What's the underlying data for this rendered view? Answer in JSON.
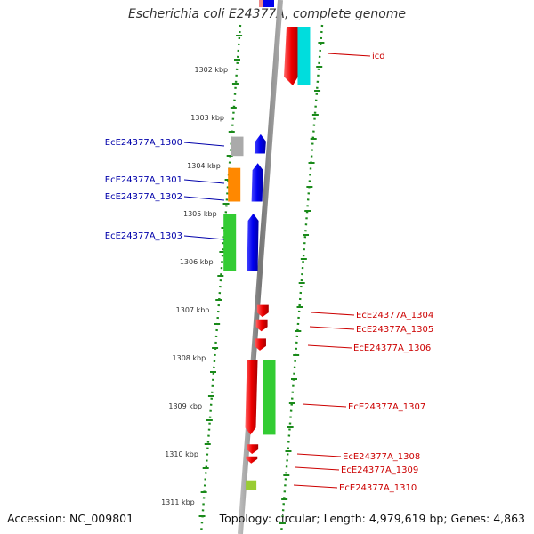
{
  "title": "Escherichia coli E24377A, complete genome",
  "footer": {
    "accession": "Accession: NC_009801",
    "stats": "Topology: circular; Length: 4,979,619 bp; Genes: 4,863"
  },
  "scale_labels": [
    {
      "kbp": 1302,
      "text": "1302 kbp"
    },
    {
      "kbp": 1303,
      "text": "1303 kbp"
    },
    {
      "kbp": 1304,
      "text": "1304 kbp"
    },
    {
      "kbp": 1305,
      "text": "1305 kbp"
    },
    {
      "kbp": 1306,
      "text": "1306 kbp"
    },
    {
      "kbp": 1307,
      "text": "1307 kbp"
    },
    {
      "kbp": 1308,
      "text": "1308 kbp"
    },
    {
      "kbp": 1309,
      "text": "1309 kbp"
    },
    {
      "kbp": 1310,
      "text": "1310 kbp"
    },
    {
      "kbp": 1311,
      "text": "1311 kbp"
    }
  ],
  "colors": {
    "forward_label": "#cc0000",
    "reverse_label": "#0000aa",
    "backbone": "#888888",
    "tick_marks": "#1a8a1a"
  },
  "genes_left": [
    {
      "name": "EcE24377A_1300",
      "start_kbp": 1303.4,
      "end_kbp": 1303.8,
      "color": "#aaaaaa"
    },
    {
      "name": "EcE24377A_1301",
      "start_kbp": 1304.05,
      "end_kbp": 1304.75,
      "color": "#ff8800"
    },
    {
      "name": "EcE24377A_1302",
      "start_kbp": 1304.05,
      "end_kbp": 1304.8,
      "color": "#0000ee"
    },
    {
      "name": "EcE24377A_1303",
      "start_kbp": 1305.0,
      "end_kbp": 1306.2,
      "color": "#33cc33"
    }
  ],
  "genes_right": [
    {
      "name": "icd",
      "start_kbp": 1301.05,
      "end_kbp": 1302.3,
      "color": "#00dddd"
    },
    {
      "name": "EcE24377A_1304",
      "start_kbp": 1306.9,
      "end_kbp": 1307.15,
      "color": "#ee0000"
    },
    {
      "name": "EcE24377A_1305",
      "start_kbp": 1307.2,
      "end_kbp": 1307.45,
      "color": "#ee0000"
    },
    {
      "name": "EcE24377A_1306",
      "start_kbp": 1307.6,
      "end_kbp": 1307.85,
      "color": "#ee0000"
    },
    {
      "name": "EcE24377A_1307",
      "start_kbp": 1308.05,
      "end_kbp": 1309.6,
      "color": "#33cc33"
    },
    {
      "name": "EcE24377A_1308",
      "start_kbp": 1309.8,
      "end_kbp": 1310.0,
      "color": "#ee0000"
    },
    {
      "name": "EcE24377A_1309",
      "start_kbp": 1310.05,
      "end_kbp": 1310.2,
      "color": "#ee0000"
    },
    {
      "name": "EcE24377A_1310",
      "start_kbp": 1310.55,
      "end_kbp": 1310.75,
      "color": "#99cc33"
    }
  ]
}
